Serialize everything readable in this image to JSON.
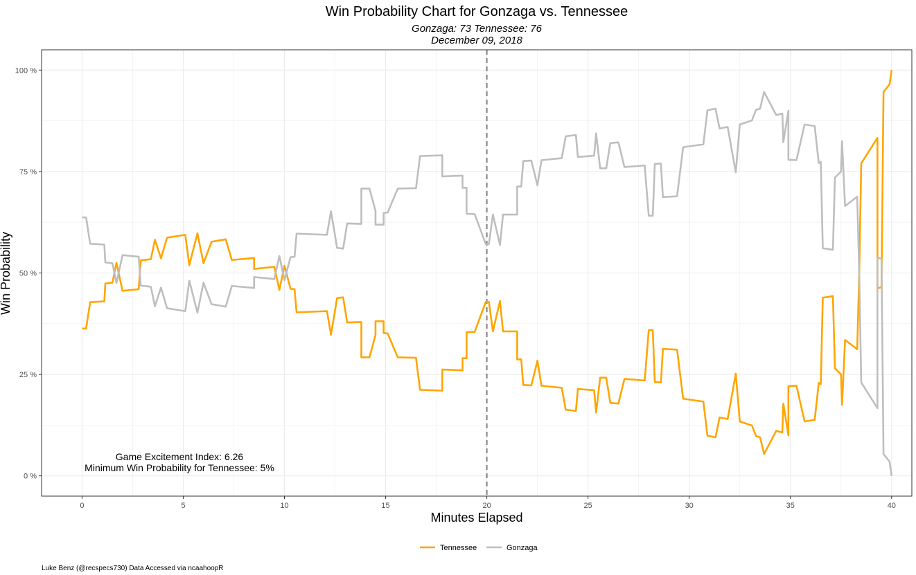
{
  "chart_data": {
    "type": "line",
    "title": "Win Probability Chart for Gonzaga vs. Tennessee",
    "subtitle_line1": "Gonzaga: 73  Tennessee: 76",
    "subtitle_line2": "December 09, 2018",
    "xlabel": "Minutes Elapsed",
    "ylabel": "Win Probability",
    "xlim": [
      -2,
      41
    ],
    "ylim": [
      -0.05,
      1.05
    ],
    "x_ticks": [
      0,
      5,
      10,
      15,
      20,
      25,
      30,
      35,
      40
    ],
    "x_tick_labels": [
      "0",
      "5",
      "10",
      "15",
      "20",
      "25",
      "30",
      "35",
      "40"
    ],
    "y_ticks": [
      0,
      0.25,
      0.5,
      0.75,
      1.0
    ],
    "y_tick_labels": [
      "0 %",
      "25 %",
      "50 %",
      "75 %",
      "100 %"
    ],
    "halftime_line_x": 20,
    "annotation_line1": "Game Excitement Index: 6.26",
    "annotation_line2": "Minimum Win Probability for Tennessee: 5%",
    "caption": "Luke Benz (@recspecs730) Data Accessed via ncaahoopR",
    "legend_position": "bottom",
    "series": [
      {
        "name": "Tennessee",
        "color": "#FFA500",
        "points": [
          [
            0,
            0.363
          ],
          [
            0.2,
            0.363
          ],
          [
            0.4,
            0.428
          ],
          [
            1.1,
            0.43
          ],
          [
            1.15,
            0.474
          ],
          [
            1.5,
            0.476
          ],
          [
            1.7,
            0.525
          ],
          [
            2.0,
            0.456
          ],
          [
            2.8,
            0.46
          ],
          [
            2.9,
            0.531
          ],
          [
            3.4,
            0.534
          ],
          [
            3.6,
            0.582
          ],
          [
            3.9,
            0.536
          ],
          [
            4.2,
            0.587
          ],
          [
            5.1,
            0.594
          ],
          [
            5.3,
            0.519
          ],
          [
            5.7,
            0.598
          ],
          [
            6.0,
            0.524
          ],
          [
            6.4,
            0.577
          ],
          [
            7.1,
            0.583
          ],
          [
            7.4,
            0.532
          ],
          [
            8.5,
            0.537
          ],
          [
            8.5,
            0.51
          ],
          [
            9.5,
            0.515
          ],
          [
            9.75,
            0.458
          ],
          [
            10.0,
            0.518
          ],
          [
            10.3,
            0.461
          ],
          [
            10.5,
            0.46
          ],
          [
            10.6,
            0.403
          ],
          [
            12.1,
            0.406
          ],
          [
            12.3,
            0.348
          ],
          [
            12.6,
            0.438
          ],
          [
            12.9,
            0.44
          ],
          [
            13.1,
            0.378
          ],
          [
            13.8,
            0.379
          ],
          [
            13.8,
            0.292
          ],
          [
            14.2,
            0.292
          ],
          [
            14.5,
            0.347
          ],
          [
            14.5,
            0.381
          ],
          [
            14.9,
            0.381
          ],
          [
            14.9,
            0.352
          ],
          [
            15.1,
            0.351
          ],
          [
            15.6,
            0.292
          ],
          [
            16.5,
            0.291
          ],
          [
            16.7,
            0.212
          ],
          [
            17.8,
            0.21
          ],
          [
            17.8,
            0.262
          ],
          [
            18.8,
            0.26
          ],
          [
            18.8,
            0.29
          ],
          [
            19.0,
            0.29
          ],
          [
            19.0,
            0.354
          ],
          [
            19.4,
            0.355
          ],
          [
            19.95,
            0.429
          ],
          [
            20.1,
            0.429
          ],
          [
            20.3,
            0.356
          ],
          [
            20.65,
            0.431
          ],
          [
            20.8,
            0.356
          ],
          [
            21.5,
            0.356
          ],
          [
            21.5,
            0.287
          ],
          [
            21.7,
            0.287
          ],
          [
            21.8,
            0.224
          ],
          [
            22.2,
            0.223
          ],
          [
            22.5,
            0.284
          ],
          [
            22.7,
            0.222
          ],
          [
            23.7,
            0.217
          ],
          [
            23.9,
            0.163
          ],
          [
            24.4,
            0.16
          ],
          [
            24.5,
            0.214
          ],
          [
            25.3,
            0.211
          ],
          [
            25.4,
            0.156
          ],
          [
            25.6,
            0.242
          ],
          [
            25.9,
            0.242
          ],
          [
            26.1,
            0.18
          ],
          [
            26.5,
            0.178
          ],
          [
            26.8,
            0.239
          ],
          [
            27.8,
            0.235
          ],
          [
            28.0,
            0.359
          ],
          [
            28.2,
            0.359
          ],
          [
            28.3,
            0.231
          ],
          [
            28.6,
            0.23
          ],
          [
            28.7,
            0.313
          ],
          [
            29.4,
            0.311
          ],
          [
            29.7,
            0.19
          ],
          [
            30.7,
            0.183
          ],
          [
            30.9,
            0.099
          ],
          [
            31.3,
            0.095
          ],
          [
            31.5,
            0.144
          ],
          [
            31.9,
            0.14
          ],
          [
            32.3,
            0.252
          ],
          [
            32.5,
            0.134
          ],
          [
            33.1,
            0.124
          ],
          [
            33.3,
            0.098
          ],
          [
            33.5,
            0.095
          ],
          [
            33.7,
            0.054
          ],
          [
            34.3,
            0.111
          ],
          [
            34.6,
            0.107
          ],
          [
            34.65,
            0.178
          ],
          [
            34.9,
            0.1
          ],
          [
            34.9,
            0.221
          ],
          [
            35.3,
            0.222
          ],
          [
            35.7,
            0.134
          ],
          [
            36.2,
            0.138
          ],
          [
            36.4,
            0.229
          ],
          [
            36.5,
            0.226
          ],
          [
            36.6,
            0.439
          ],
          [
            37.1,
            0.443
          ],
          [
            37.2,
            0.265
          ],
          [
            37.5,
            0.25
          ],
          [
            37.55,
            0.175
          ],
          [
            37.7,
            0.335
          ],
          [
            38.3,
            0.312
          ],
          [
            38.4,
            0.5
          ],
          [
            38.5,
            0.77
          ],
          [
            39.3,
            0.833
          ],
          [
            39.3,
            0.462
          ],
          [
            39.5,
            0.465
          ],
          [
            39.6,
            0.946
          ],
          [
            39.9,
            0.965
          ],
          [
            40.0,
            1.0
          ]
        ]
      },
      {
        "name": "Gonzaga",
        "color": "#BEBEBE",
        "points": [
          [
            0,
            0.637
          ],
          [
            0.2,
            0.637
          ],
          [
            0.4,
            0.572
          ],
          [
            1.1,
            0.57
          ],
          [
            1.15,
            0.526
          ],
          [
            1.5,
            0.524
          ],
          [
            1.7,
            0.475
          ],
          [
            2.0,
            0.544
          ],
          [
            2.8,
            0.54
          ],
          [
            2.9,
            0.469
          ],
          [
            3.4,
            0.466
          ],
          [
            3.6,
            0.418
          ],
          [
            3.9,
            0.464
          ],
          [
            4.2,
            0.413
          ],
          [
            5.1,
            0.406
          ],
          [
            5.3,
            0.481
          ],
          [
            5.7,
            0.402
          ],
          [
            6.0,
            0.476
          ],
          [
            6.4,
            0.423
          ],
          [
            7.1,
            0.417
          ],
          [
            7.4,
            0.468
          ],
          [
            8.5,
            0.463
          ],
          [
            8.5,
            0.49
          ],
          [
            9.5,
            0.485
          ],
          [
            9.75,
            0.542
          ],
          [
            10.0,
            0.482
          ],
          [
            10.3,
            0.539
          ],
          [
            10.5,
            0.54
          ],
          [
            10.6,
            0.597
          ],
          [
            12.1,
            0.594
          ],
          [
            12.3,
            0.652
          ],
          [
            12.6,
            0.562
          ],
          [
            12.9,
            0.56
          ],
          [
            13.1,
            0.622
          ],
          [
            13.8,
            0.621
          ],
          [
            13.8,
            0.708
          ],
          [
            14.2,
            0.708
          ],
          [
            14.5,
            0.653
          ],
          [
            14.5,
            0.619
          ],
          [
            14.9,
            0.619
          ],
          [
            14.9,
            0.648
          ],
          [
            15.1,
            0.649
          ],
          [
            15.6,
            0.708
          ],
          [
            16.5,
            0.709
          ],
          [
            16.7,
            0.788
          ],
          [
            17.8,
            0.79
          ],
          [
            17.8,
            0.738
          ],
          [
            18.8,
            0.74
          ],
          [
            18.8,
            0.71
          ],
          [
            19.0,
            0.71
          ],
          [
            19.0,
            0.646
          ],
          [
            19.4,
            0.645
          ],
          [
            19.95,
            0.571
          ],
          [
            20.1,
            0.571
          ],
          [
            20.3,
            0.644
          ],
          [
            20.65,
            0.569
          ],
          [
            20.8,
            0.644
          ],
          [
            21.5,
            0.644
          ],
          [
            21.5,
            0.713
          ],
          [
            21.7,
            0.713
          ],
          [
            21.8,
            0.776
          ],
          [
            22.2,
            0.777
          ],
          [
            22.5,
            0.716
          ],
          [
            22.7,
            0.778
          ],
          [
            23.7,
            0.783
          ],
          [
            23.9,
            0.837
          ],
          [
            24.4,
            0.84
          ],
          [
            24.5,
            0.786
          ],
          [
            25.3,
            0.789
          ],
          [
            25.4,
            0.844
          ],
          [
            25.6,
            0.758
          ],
          [
            25.9,
            0.758
          ],
          [
            26.1,
            0.82
          ],
          [
            26.5,
            0.822
          ],
          [
            26.8,
            0.761
          ],
          [
            27.8,
            0.765
          ],
          [
            28.0,
            0.641
          ],
          [
            28.2,
            0.641
          ],
          [
            28.3,
            0.769
          ],
          [
            28.6,
            0.77
          ],
          [
            28.7,
            0.687
          ],
          [
            29.4,
            0.689
          ],
          [
            29.7,
            0.81
          ],
          [
            30.7,
            0.817
          ],
          [
            30.9,
            0.901
          ],
          [
            31.3,
            0.905
          ],
          [
            31.5,
            0.856
          ],
          [
            31.9,
            0.86
          ],
          [
            32.3,
            0.748
          ],
          [
            32.5,
            0.866
          ],
          [
            33.1,
            0.876
          ],
          [
            33.3,
            0.902
          ],
          [
            33.5,
            0.905
          ],
          [
            33.7,
            0.946
          ],
          [
            34.3,
            0.889
          ],
          [
            34.6,
            0.893
          ],
          [
            34.65,
            0.822
          ],
          [
            34.9,
            0.9
          ],
          [
            34.9,
            0.779
          ],
          [
            35.3,
            0.778
          ],
          [
            35.7,
            0.866
          ],
          [
            36.2,
            0.862
          ],
          [
            36.4,
            0.771
          ],
          [
            36.5,
            0.774
          ],
          [
            36.6,
            0.561
          ],
          [
            37.1,
            0.557
          ],
          [
            37.2,
            0.735
          ],
          [
            37.5,
            0.75
          ],
          [
            37.55,
            0.825
          ],
          [
            37.7,
            0.665
          ],
          [
            38.3,
            0.688
          ],
          [
            38.4,
            0.5
          ],
          [
            38.5,
            0.23
          ],
          [
            39.3,
            0.167
          ],
          [
            39.3,
            0.538
          ],
          [
            39.5,
            0.535
          ],
          [
            39.6,
            0.054
          ],
          [
            39.9,
            0.035
          ],
          [
            40.0,
            0.0
          ]
        ]
      }
    ]
  }
}
